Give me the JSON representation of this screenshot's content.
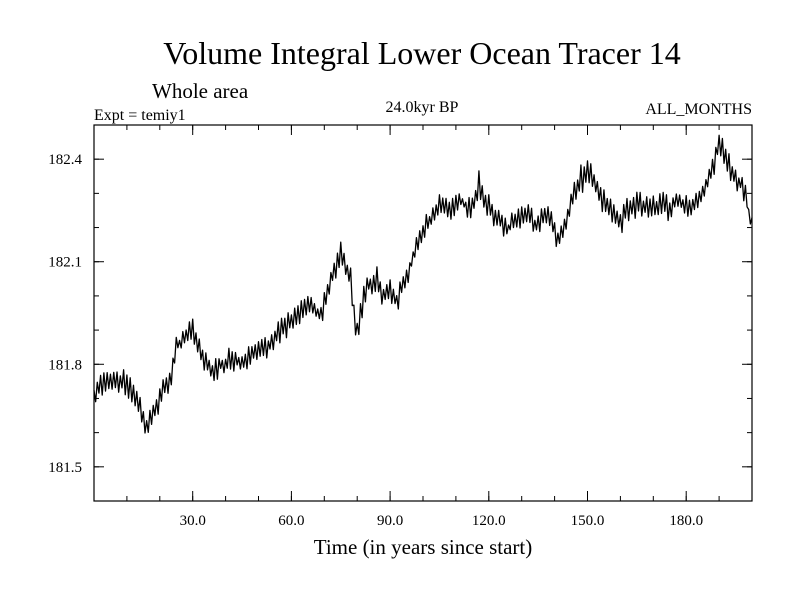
{
  "chart_data": {
    "type": "line",
    "title": "Volume Integral Lower Ocean Tracer 14",
    "subtitle": "Whole area",
    "experiment_label": "Expt = temiy1",
    "period_label": "24.0kyr BP",
    "months_label": "ALL_MONTHS",
    "xlabel": "Time (in years since start)",
    "ylabel": "",
    "xlim": [
      0,
      200
    ],
    "ylim": [
      181.4,
      182.5
    ],
    "x_ticks": [
      30,
      60,
      90,
      120,
      150,
      180
    ],
    "x_tick_labels": [
      "30.0",
      "60.0",
      "90.0",
      "120.0",
      "150.0",
      "180.0"
    ],
    "y_ticks": [
      181.5,
      181.8,
      182.1,
      182.4
    ],
    "y_tick_labels": [
      "181.5",
      "181.8",
      "182.1",
      "182.4"
    ],
    "x_minor_step": 10,
    "y_minor_step": 0.1,
    "grid": false,
    "sample_step_years": 0.5,
    "noise_amplitude": 0.035,
    "series": [
      {
        "name": "Volume Integral Lower Ocean Tracer 14",
        "color": "#000000",
        "x": [
          0,
          3,
          6,
          9,
          12,
          15,
          16,
          18,
          21,
          23,
          25,
          28,
          30,
          33,
          36,
          39,
          42,
          45,
          48,
          51,
          54,
          57,
          60,
          63,
          66,
          69,
          71,
          73,
          75,
          76,
          78,
          79,
          80,
          82,
          84,
          86,
          88,
          90,
          92,
          94,
          96,
          97,
          98,
          100,
          102,
          104,
          106,
          108,
          111,
          114,
          116,
          117,
          118,
          120,
          122,
          124,
          126,
          128,
          130,
          132,
          134,
          136,
          138,
          140,
          141,
          142,
          144,
          146,
          148,
          150,
          152,
          154,
          157,
          160,
          163,
          166,
          169,
          172,
          175,
          178,
          181,
          184,
          186,
          188,
          190,
          191,
          192,
          194,
          196,
          198,
          199,
          200
        ],
        "y": [
          181.7,
          181.75,
          181.76,
          181.75,
          181.72,
          181.65,
          181.62,
          181.65,
          181.72,
          181.75,
          181.85,
          181.88,
          181.9,
          181.82,
          181.78,
          181.8,
          181.82,
          181.8,
          181.83,
          181.85,
          181.86,
          181.9,
          181.92,
          181.96,
          181.98,
          181.94,
          182.02,
          182.06,
          182.12,
          182.1,
          182.05,
          181.95,
          181.88,
          182.0,
          182.04,
          182.05,
          182.0,
          182.02,
          181.99,
          182.03,
          182.08,
          182.12,
          182.15,
          182.18,
          182.22,
          182.25,
          182.27,
          182.24,
          182.28,
          182.26,
          182.28,
          182.33,
          182.3,
          182.26,
          182.24,
          182.22,
          182.2,
          182.22,
          182.24,
          182.24,
          182.2,
          182.22,
          182.24,
          182.2,
          182.16,
          182.18,
          182.24,
          182.3,
          182.34,
          182.36,
          182.34,
          182.28,
          182.26,
          182.22,
          182.26,
          182.27,
          182.26,
          182.27,
          182.26,
          182.28,
          182.26,
          182.28,
          182.32,
          182.38,
          182.44,
          182.45,
          182.4,
          182.36,
          182.34,
          182.3,
          182.24,
          182.2
        ]
      }
    ]
  }
}
